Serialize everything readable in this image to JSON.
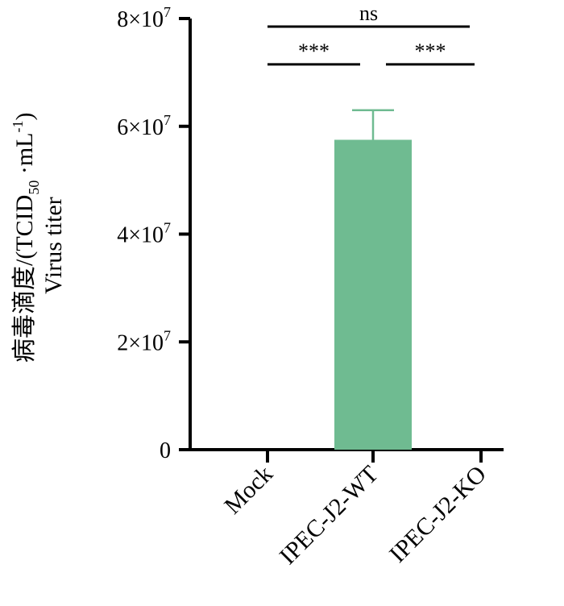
{
  "chart_data": {
    "type": "bar",
    "categories": [
      "Mock",
      "IPEC-J2-WT",
      "IPEC-J2-KO"
    ],
    "values": [
      0,
      57500000,
      0
    ],
    "error_upper": [
      0,
      63000000,
      0
    ],
    "ylim": [
      0,
      80000000
    ],
    "y_ticks": [
      {
        "value": 0,
        "base": "0",
        "exp": ""
      },
      {
        "value": 20000000,
        "base": "2×10",
        "exp": "7"
      },
      {
        "value": 40000000,
        "base": "4×10",
        "exp": "7"
      },
      {
        "value": 60000000,
        "base": "6×10",
        "exp": "7"
      },
      {
        "value": 80000000,
        "base": "8×10",
        "exp": "7"
      }
    ],
    "ylabel_line1_pre": "病毒滴度/(TCID",
    "ylabel_sub": "50",
    "ylabel_mid": " ·mL",
    "ylabel_sup": "-1",
    "ylabel_post": ")",
    "ylabel_line2": "Virus titer",
    "bar_color": "#6fbb91",
    "significance": [
      {
        "from": 0,
        "to": 2,
        "label": "ns",
        "level": 78500000
      },
      {
        "from": 0,
        "to": 1,
        "label": "***",
        "level": 71500000
      },
      {
        "from": 1,
        "to": 2,
        "label": "***",
        "level": 71500000
      }
    ]
  }
}
